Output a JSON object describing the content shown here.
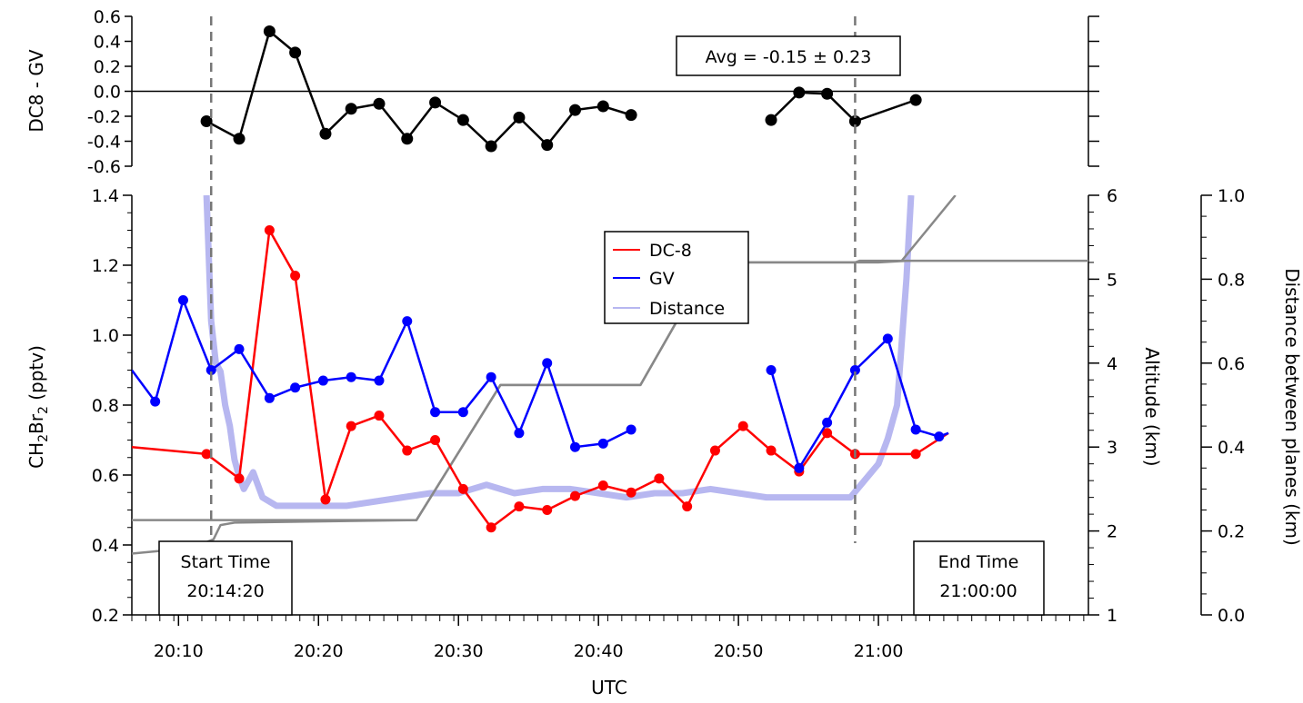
{
  "chart_data": {
    "type": "line",
    "x_unit": "UTC",
    "x_ticks": [
      "20:10",
      "20:20",
      "20:30",
      "20:40",
      "20:50",
      "21:00"
    ],
    "x_range": [
      "20:06:40",
      "21:15:00"
    ],
    "x_label": "UTC",
    "top_panel": {
      "ylabel": "DC8 - GV",
      "ylim": [
        -0.6,
        0.6
      ],
      "y_ticks": [
        "0.6",
        "0.4",
        "0.2",
        "0.0",
        "-0.2",
        "-0.4",
        "-0.6"
      ],
      "zero_line": true,
      "annotation": "Avg = -0.15 ± 0.23",
      "series": [
        {
          "name": "DC8 - GV",
          "color": "#000000",
          "segments": [
            [
              {
                "x": "20:12:00",
                "y": -0.24
              },
              {
                "x": "20:14:20",
                "y": -0.38
              },
              {
                "x": "20:16:30",
                "y": 0.48
              },
              {
                "x": "20:18:20",
                "y": 0.31
              },
              {
                "x": "20:20:30",
                "y": -0.34
              },
              {
                "x": "20:22:20",
                "y": -0.14
              },
              {
                "x": "20:24:20",
                "y": -0.1
              },
              {
                "x": "20:26:20",
                "y": -0.38
              },
              {
                "x": "20:28:20",
                "y": -0.09
              },
              {
                "x": "20:30:20",
                "y": -0.23
              },
              {
                "x": "20:32:20",
                "y": -0.44
              },
              {
                "x": "20:34:20",
                "y": -0.21
              },
              {
                "x": "20:36:20",
                "y": -0.43
              },
              {
                "x": "20:38:20",
                "y": -0.15
              },
              {
                "x": "20:40:20",
                "y": -0.12
              },
              {
                "x": "20:42:20",
                "y": -0.19
              }
            ],
            [
              {
                "x": "20:52:20",
                "y": -0.23
              },
              {
                "x": "20:54:20",
                "y": -0.01
              },
              {
                "x": "20:56:20",
                "y": -0.02
              },
              {
                "x": "20:58:20",
                "y": -0.24
              },
              {
                "x": "21:02:40",
                "y": -0.07
              }
            ]
          ]
        }
      ]
    },
    "bottom_panel": {
      "ylabel_prefix": "CH",
      "ylabel_sub1": "2",
      "ylabel_mid": "Br",
      "ylabel_sub2": "2",
      "ylabel_suffix": " (pptv)",
      "ylim": [
        0.2,
        1.4
      ],
      "y_ticks": [
        "1.4",
        "1.2",
        "1.0",
        "0.8",
        "0.6",
        "0.4",
        "0.2"
      ],
      "right_axis1": {
        "label": "Altitude (km)",
        "ylim": [
          1,
          6
        ],
        "ticks": [
          "6",
          "5",
          "4",
          "3",
          "2",
          "1"
        ]
      },
      "right_axis2": {
        "label": "Distance between planes (km)",
        "ylim": [
          0.0,
          1.0
        ],
        "ticks": [
          "1.0",
          "0.8",
          "0.6",
          "0.4",
          "0.2",
          "0.0"
        ]
      },
      "series": [
        {
          "name": "DC-8",
          "color": "#ff0000",
          "axis": "left",
          "points": [
            {
              "x": "20:06:40",
              "y": 0.68
            },
            {
              "x": "20:12:00",
              "y": 0.66
            },
            {
              "x": "20:14:20",
              "y": 0.59
            },
            {
              "x": "20:16:30",
              "y": 1.3
            },
            {
              "x": "20:18:20",
              "y": 1.17
            },
            {
              "x": "20:20:30",
              "y": 0.53
            },
            {
              "x": "20:22:20",
              "y": 0.74
            },
            {
              "x": "20:24:20",
              "y": 0.77
            },
            {
              "x": "20:26:20",
              "y": 0.67
            },
            {
              "x": "20:28:20",
              "y": 0.7
            },
            {
              "x": "20:30:20",
              "y": 0.56
            },
            {
              "x": "20:32:20",
              "y": 0.45
            },
            {
              "x": "20:34:20",
              "y": 0.51
            },
            {
              "x": "20:36:20",
              "y": 0.5
            },
            {
              "x": "20:38:20",
              "y": 0.54
            },
            {
              "x": "20:40:20",
              "y": 0.57
            },
            {
              "x": "20:42:20",
              "y": 0.55
            },
            {
              "x": "20:44:20",
              "y": 0.59
            },
            {
              "x": "20:46:20",
              "y": 0.51
            },
            {
              "x": "20:48:20",
              "y": 0.67
            },
            {
              "x": "20:50:20",
              "y": 0.74
            },
            {
              "x": "20:52:20",
              "y": 0.67
            },
            {
              "x": "20:54:20",
              "y": 0.61
            },
            {
              "x": "20:56:20",
              "y": 0.72
            },
            {
              "x": "20:58:20",
              "y": 0.66
            },
            {
              "x": "21:02:40",
              "y": 0.66
            },
            {
              "x": "21:05:00",
              "y": 0.72
            }
          ]
        },
        {
          "name": "GV",
          "color": "#0000ff",
          "axis": "left",
          "segments": [
            [
              {
                "x": "20:06:40",
                "y": 0.9
              },
              {
                "x": "20:08:20",
                "y": 0.81
              },
              {
                "x": "20:10:20",
                "y": 1.1
              },
              {
                "x": "20:12:20",
                "y": 0.9
              },
              {
                "x": "20:14:20",
                "y": 0.96
              },
              {
                "x": "20:16:30",
                "y": 0.82
              },
              {
                "x": "20:18:20",
                "y": 0.85
              },
              {
                "x": "20:20:20",
                "y": 0.87
              },
              {
                "x": "20:22:20",
                "y": 0.88
              },
              {
                "x": "20:24:20",
                "y": 0.87
              },
              {
                "x": "20:26:20",
                "y": 1.04
              },
              {
                "x": "20:28:20",
                "y": 0.78
              },
              {
                "x": "20:30:20",
                "y": 0.78
              },
              {
                "x": "20:32:20",
                "y": 0.88
              },
              {
                "x": "20:34:20",
                "y": 0.72
              },
              {
                "x": "20:36:20",
                "y": 0.92
              },
              {
                "x": "20:38:20",
                "y": 0.68
              },
              {
                "x": "20:40:20",
                "y": 0.69
              },
              {
                "x": "20:42:20",
                "y": 0.73
              }
            ],
            [
              {
                "x": "20:52:20",
                "y": 0.9
              },
              {
                "x": "20:54:20",
                "y": 0.62
              },
              {
                "x": "20:56:20",
                "y": 0.75
              },
              {
                "x": "20:58:20",
                "y": 0.9
              },
              {
                "x": "21:00:40",
                "y": 0.99
              },
              {
                "x": "21:02:40",
                "y": 0.73
              },
              {
                "x": "21:04:20",
                "y": 0.71
              },
              {
                "x": "21:05:00",
                "y": 0.72
              }
            ]
          ]
        },
        {
          "name": "Distance",
          "color": "#b7b7f0",
          "axis": "right2",
          "points": [
            {
              "x": "20:12:00",
              "y": 1.0
            },
            {
              "x": "20:12:20",
              "y": 0.7
            },
            {
              "x": "20:12:40",
              "y": 0.6
            },
            {
              "x": "20:13:00",
              "y": 0.58
            },
            {
              "x": "20:13:20",
              "y": 0.5
            },
            {
              "x": "20:13:40",
              "y": 0.45
            },
            {
              "x": "20:14:00",
              "y": 0.37
            },
            {
              "x": "20:14:20",
              "y": 0.33
            },
            {
              "x": "20:14:40",
              "y": 0.3
            },
            {
              "x": "20:15:20",
              "y": 0.34
            },
            {
              "x": "20:16:00",
              "y": 0.28
            },
            {
              "x": "20:17:00",
              "y": 0.26
            },
            {
              "x": "20:18:00",
              "y": 0.26
            },
            {
              "x": "20:20:00",
              "y": 0.26
            },
            {
              "x": "20:22:00",
              "y": 0.26
            },
            {
              "x": "20:24:00",
              "y": 0.27
            },
            {
              "x": "20:26:00",
              "y": 0.28
            },
            {
              "x": "20:28:00",
              "y": 0.29
            },
            {
              "x": "20:30:00",
              "y": 0.29
            },
            {
              "x": "20:32:00",
              "y": 0.31
            },
            {
              "x": "20:33:00",
              "y": 0.3
            },
            {
              "x": "20:34:00",
              "y": 0.29
            },
            {
              "x": "20:36:00",
              "y": 0.3
            },
            {
              "x": "20:38:00",
              "y": 0.3
            },
            {
              "x": "20:40:00",
              "y": 0.29
            },
            {
              "x": "20:42:00",
              "y": 0.28
            },
            {
              "x": "20:44:00",
              "y": 0.29
            },
            {
              "x": "20:46:00",
              "y": 0.29
            },
            {
              "x": "20:48:00",
              "y": 0.3
            },
            {
              "x": "20:50:00",
              "y": 0.29
            },
            {
              "x": "20:52:00",
              "y": 0.28
            },
            {
              "x": "20:54:00",
              "y": 0.28
            },
            {
              "x": "20:56:00",
              "y": 0.28
            },
            {
              "x": "20:58:00",
              "y": 0.28
            },
            {
              "x": "20:59:00",
              "y": 0.32
            },
            {
              "x": "21:00:00",
              "y": 0.36
            },
            {
              "x": "21:00:40",
              "y": 0.42
            },
            {
              "x": "21:01:20",
              "y": 0.5
            },
            {
              "x": "21:02:00",
              "y": 0.8
            },
            {
              "x": "21:02:20",
              "y": 1.0
            }
          ]
        },
        {
          "name": "Altitude",
          "color": "#888888",
          "axis": "right1",
          "points": [
            {
              "x": "20:06:40",
              "y": 2.13
            },
            {
              "x": "20:27:00",
              "y": 2.13
            },
            {
              "x": "20:33:00",
              "y": 3.74
            },
            {
              "x": "20:43:00",
              "y": 3.74
            },
            {
              "x": "20:48:00",
              "y": 5.2
            },
            {
              "x": "21:00:00",
              "y": 5.2
            },
            {
              "x": "21:02:00",
              "y": 5.22
            },
            {
              "x": "21:15:00",
              "y": 5.22
            }
          ]
        },
        {
          "name": "Altitude 2",
          "color": "#888888",
          "axis": "right1",
          "points": [
            {
              "x": "20:06:40",
              "y": 1.73
            },
            {
              "x": "20:11:00",
              "y": 1.8
            },
            {
              "x": "20:12:30",
              "y": 1.9
            },
            {
              "x": "20:13:00",
              "y": 2.07
            },
            {
              "x": "20:14:00",
              "y": 2.1
            },
            {
              "x": "20:27:00",
              "y": 2.13
            },
            {
              "x": "20:33:00",
              "y": 3.74
            },
            {
              "x": "20:43:00",
              "y": 3.74
            },
            {
              "x": "20:48:00",
              "y": 5.2
            },
            {
              "x": "20:58:20",
              "y": 5.2
            },
            {
              "x": "20:58:40",
              "y": 5.22
            },
            {
              "x": "21:01:40",
              "y": 5.22
            },
            {
              "x": "21:05:30",
              "y": 6.0
            }
          ]
        }
      ],
      "legend": [
        "DC-8",
        "GV",
        "Distance"
      ],
      "start_box": {
        "line1": "Start Time",
        "line2": "20:14:20",
        "x": "20:12:20"
      },
      "end_box": {
        "line1": "End Time",
        "line2": "21:00:00",
        "x": "20:58:20"
      }
    }
  }
}
